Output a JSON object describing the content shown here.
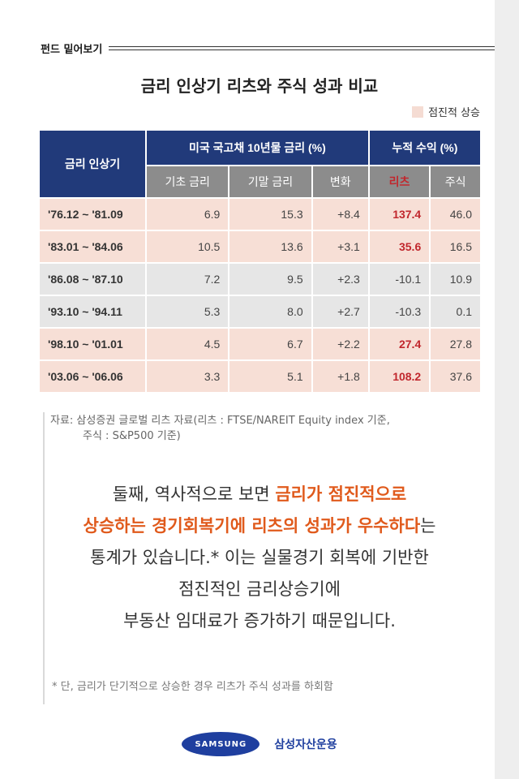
{
  "section_label": "펀드 밑어보기",
  "title": "금리 인상기 리츠와 주식 성과 비교",
  "legend": "점진적 상승",
  "table": {
    "period_header": "금리 인상기",
    "group1": "미국 국고채 10년물 금리 (%)",
    "group2": "누적 수익 (%)",
    "sub": [
      "기초 금리",
      "기말 금리",
      "변화",
      "리츠",
      "주식"
    ],
    "rows": [
      {
        "period": "'76.12 ~ '81.09",
        "base": "6.9",
        "end": "15.3",
        "change": "+8.4",
        "reit": "137.4",
        "stock": "46.0"
      },
      {
        "period": "'83.01 ~ '84.06",
        "base": "10.5",
        "end": "13.6",
        "change": "+3.1",
        "reit": "35.6",
        "stock": "16.5"
      },
      {
        "period": "'86.08 ~ '87.10",
        "base": "7.2",
        "end": "9.5",
        "change": "+2.3",
        "reit": "-10.1",
        "stock": "10.9"
      },
      {
        "period": "'93.10 ~ '94.11",
        "base": "5.3",
        "end": "8.0",
        "change": "+2.7",
        "reit": "-10.3",
        "stock": "0.1"
      },
      {
        "period": "'98.10 ~ '01.01",
        "base": "4.5",
        "end": "6.7",
        "change": "+2.2",
        "reit": "27.4",
        "stock": "27.8"
      },
      {
        "period": "'03.06 ~ '06.06",
        "base": "3.3",
        "end": "5.1",
        "change": "+1.8",
        "reit": "108.2",
        "stock": "37.6"
      }
    ]
  },
  "source_line1": "자료: 삼성증권 글로벌 리츠 자료(리츠 : FTSE/NAREIT Equity index 기준,",
  "source_line2": "주식 : S&P500 기준)",
  "body": {
    "p1": "둘째, 역사적으로 보면 ",
    "h1": "금리가 점진적으로",
    "h2": "상승하는 경기회복기에 리츠의 성과가 우수하다",
    "p2": "는",
    "p3": "통계가 있습니다.* 이는 실물경기 회복에 기반한",
    "p4": "점진적인 금리상승기에",
    "p5": "부동산 임대료가 증가하기 때문입니다."
  },
  "footnote": "* 단, 금리가 단기적으로 상승한 경우 리츠가 주식 성과를 하회함",
  "brand": {
    "logo": "SAMSUNG",
    "name": "삼성자산운용"
  }
}
